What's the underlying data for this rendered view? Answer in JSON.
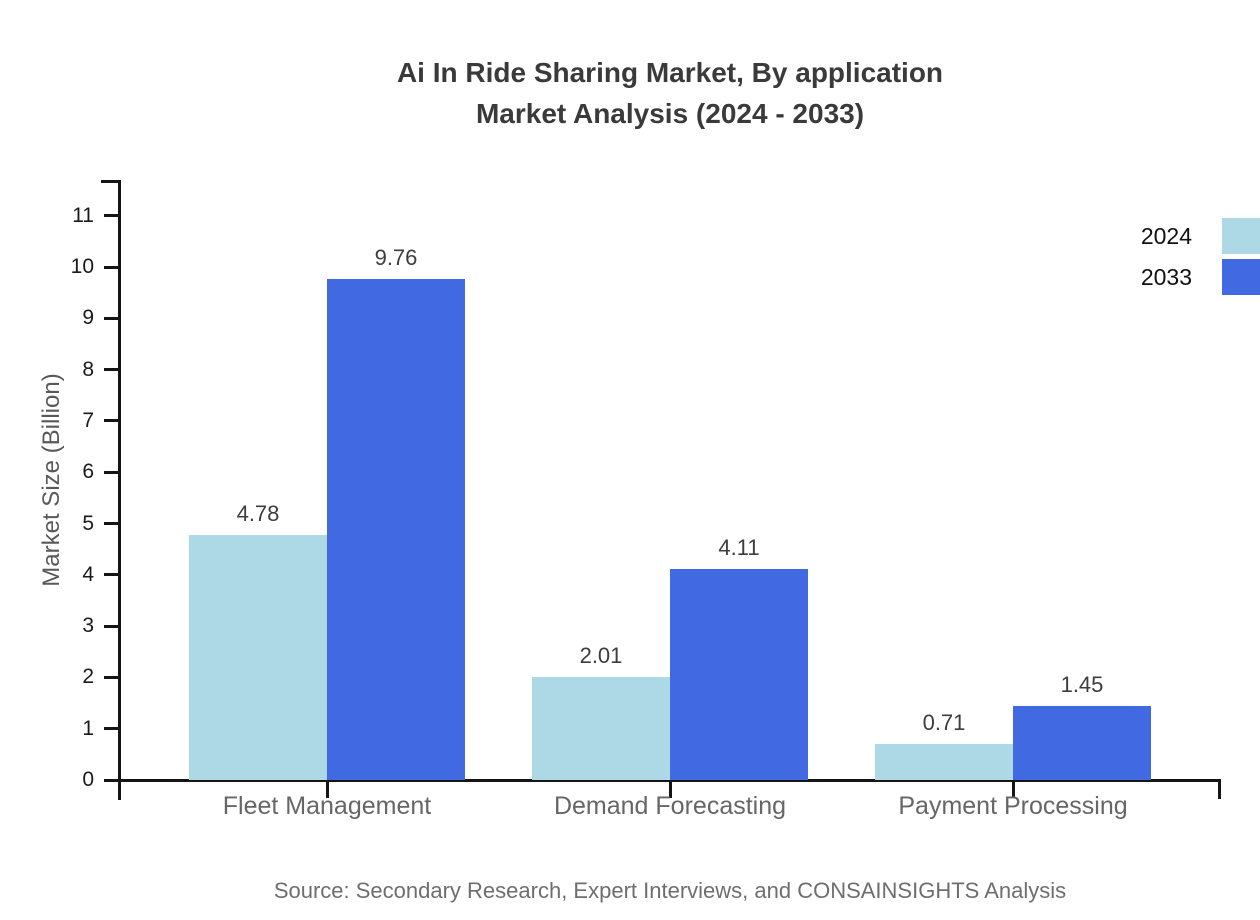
{
  "chart_data": {
    "type": "bar",
    "title": "Ai In Ride Sharing Market, By application",
    "subtitle": "Market Analysis (2024 - 2033)",
    "ylabel": "Market Size (Billion)",
    "xlabel": "",
    "categories": [
      "Fleet Management",
      "Demand Forecasting",
      "Payment Processing"
    ],
    "series": [
      {
        "name": "2024",
        "color": "#ADD8E6",
        "values": [
          4.78,
          2.01,
          0.71
        ]
      },
      {
        "name": "2033",
        "color": "#4169E1",
        "values": [
          9.76,
          4.11,
          1.45
        ]
      }
    ],
    "value_labels": [
      [
        "4.78",
        "2.01",
        "0.71"
      ],
      [
        "9.76",
        "4.11",
        "1.45"
      ]
    ],
    "ylim": [
      0,
      11.7
    ],
    "yticks": [
      0,
      1,
      2,
      3,
      4,
      5,
      6,
      7,
      8,
      9,
      10,
      11
    ],
    "grid": false,
    "legend": {
      "position": "top-right",
      "entries": [
        "2024",
        "2033"
      ]
    },
    "source": "Source: Secondary Research, Expert Interviews, and CONSAINSIGHTS Analysis"
  },
  "colors": {
    "series_2024": "#ADD8E6",
    "series_2033": "#4169E1",
    "axis": "#151515",
    "title_text": "#3A3A3A",
    "category_text": "#666666",
    "source_text": "#6E6E6E"
  }
}
